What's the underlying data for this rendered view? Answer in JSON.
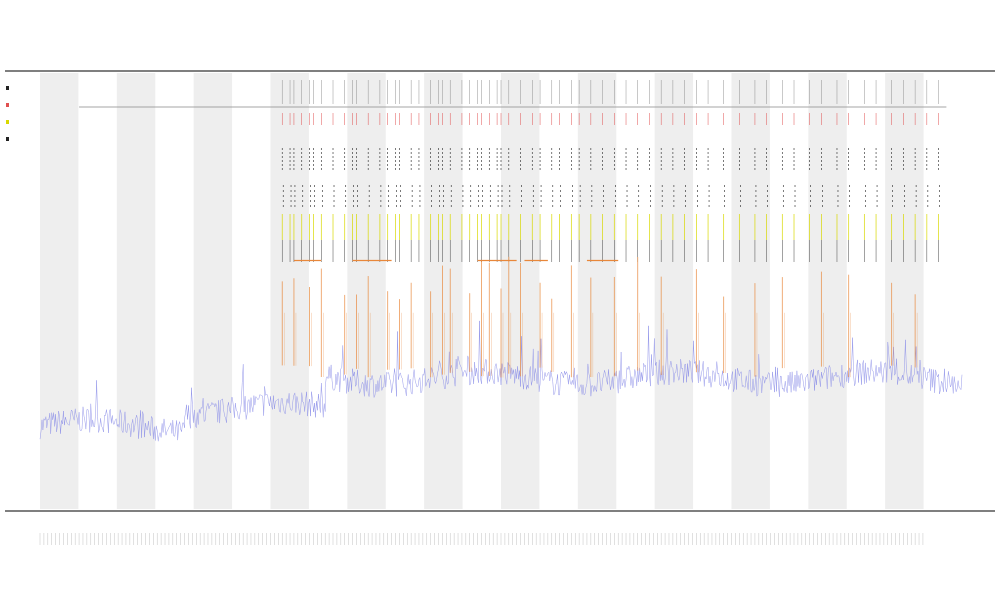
{
  "colors": {
    "band": "#eeeeee",
    "blue_series": "#8a8de8",
    "orange_series": "#e8873a",
    "red_marks": "#e05050",
    "yellow_marks": "#d8d800",
    "black_marks": "#222222",
    "axis": "#333333"
  },
  "chart_data": {
    "type": "line",
    "title": "",
    "subtitle_lines": [
      "",
      ""
    ],
    "xlabel": "",
    "ylabel": "",
    "legend_placement": "left",
    "grid": false,
    "legend": [
      {
        "name": "",
        "color": "#222222"
      },
      {
        "name": "",
        "color": "#e05050"
      },
      {
        "name": "",
        "color": "#d8d800"
      },
      {
        "name": "",
        "color": "#222222"
      }
    ],
    "x_range": [
      0,
      236
    ],
    "y_range": [
      0,
      100
    ],
    "band_count": 12,
    "baseline": {
      "name": "",
      "segments": [
        {
          "x0": 0,
          "x1": 37,
          "level": 19
        },
        {
          "x0": 37,
          "x1": 73,
          "level": 23
        },
        {
          "x0": 73,
          "x1": 236,
          "level": 30
        }
      ]
    },
    "spike_events": [
      62,
      64,
      65,
      67,
      69,
      70,
      72,
      75,
      78,
      80,
      81,
      84,
      87,
      89,
      91,
      92,
      95,
      97,
      100,
      102,
      103,
      105,
      108,
      110,
      112,
      113,
      115,
      117,
      118,
      120,
      123,
      126,
      128,
      131,
      133,
      136,
      138,
      141,
      144,
      147,
      150,
      153,
      156,
      159,
      162,
      165,
      168,
      171,
      175,
      179,
      183,
      186,
      190,
      193,
      197,
      200,
      204,
      207,
      211,
      214,
      218,
      221,
      224,
      227,
      230
    ],
    "orange_spike_events": [
      62,
      65,
      69,
      72,
      78,
      81,
      84,
      89,
      92,
      95,
      100,
      103,
      105,
      110,
      113,
      115,
      118,
      120,
      123,
      128,
      131,
      136,
      141,
      147,
      153,
      159,
      168,
      175,
      183,
      190,
      200,
      207,
      218,
      224
    ],
    "orange_horizontal_marks": [
      {
        "x0": 65,
        "x1": 72,
        "level": 57
      },
      {
        "x0": 80,
        "x1": 90,
        "level": 57
      },
      {
        "x0": 112,
        "x1": 122,
        "level": 57
      },
      {
        "x0": 124,
        "x1": 130,
        "level": 57
      },
      {
        "x0": 140,
        "x1": 148,
        "level": 57
      }
    ]
  }
}
